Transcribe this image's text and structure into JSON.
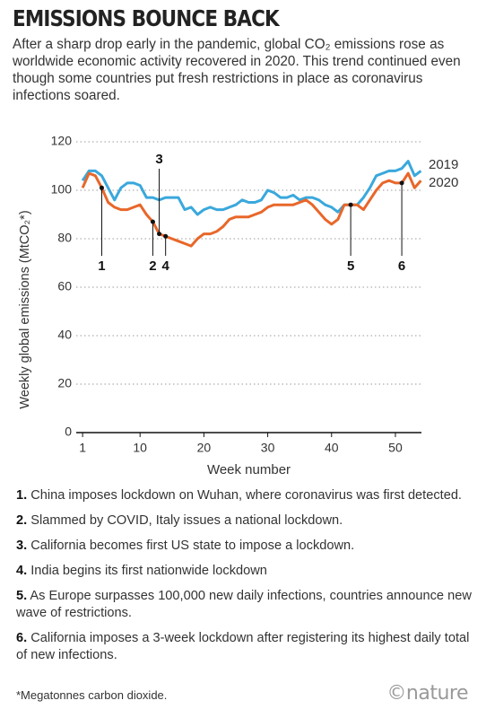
{
  "chart_data": {
    "type": "line",
    "title": "EMISSIONS BOUNCE BACK",
    "subtitle": "After a sharp drop early in the pandemic, global CO₂ emissions rose as worldwide economic activity recovered in 2020. This trend continued even though some countries put fresh restrictions in place as coronavirus infections soared.",
    "x_label": "Week number",
    "y_label": "Weekly global emissions (MtCO₂*)",
    "x": [
      1,
      2,
      3,
      4,
      5,
      6,
      7,
      8,
      9,
      10,
      11,
      12,
      13,
      14,
      15,
      16,
      17,
      18,
      19,
      20,
      21,
      22,
      23,
      24,
      25,
      26,
      27,
      28,
      29,
      30,
      31,
      32,
      33,
      34,
      35,
      36,
      37,
      38,
      39,
      40,
      41,
      42,
      43,
      44,
      45,
      46,
      47,
      48,
      49,
      50,
      51,
      52,
      53,
      54
    ],
    "series": [
      {
        "name": "2019",
        "color": "#3aa8dc",
        "values": [
          104,
          108,
          108,
          106,
          101,
          96,
          101,
          103,
          103,
          102,
          97,
          97,
          96,
          97,
          97,
          97,
          92,
          93,
          90,
          92,
          93,
          92,
          92,
          93,
          94,
          96,
          95,
          95,
          96,
          100,
          99,
          97,
          97,
          98,
          96,
          97,
          97,
          96,
          94,
          93,
          91,
          94,
          94,
          94,
          97,
          101,
          106,
          107,
          108,
          108,
          109,
          112,
          106,
          108
        ]
      },
      {
        "name": "2020",
        "color": "#e8672a",
        "values": [
          101,
          107,
          106,
          101,
          95,
          93,
          92,
          92,
          93,
          94,
          90,
          87,
          82,
          81,
          80,
          79,
          78,
          77,
          80,
          82,
          82,
          83,
          85,
          88,
          89,
          89,
          89,
          90,
          91,
          93,
          94,
          94,
          94,
          94,
          95,
          96,
          94,
          91,
          88,
          86,
          88,
          94,
          94,
          94,
          92,
          96,
          100,
          103,
          104,
          103,
          103,
          107,
          101,
          104
        ]
      }
    ],
    "annotations": [
      {
        "label": "1",
        "x": 4,
        "position": "below"
      },
      {
        "label": "2",
        "x": 12,
        "position": "below"
      },
      {
        "label": "3",
        "x": 13,
        "position": "above"
      },
      {
        "label": "4",
        "x": 14,
        "position": "below"
      },
      {
        "label": "5",
        "x": 43,
        "position": "below"
      },
      {
        "label": "6",
        "x": 51,
        "position": "below"
      }
    ],
    "xlim": [
      0,
      54.5
    ],
    "xticks": [
      1,
      10,
      20,
      30,
      40,
      50
    ],
    "ylim": [
      0,
      120
    ],
    "yticks": [
      0,
      20,
      40,
      60,
      80,
      100,
      120
    ],
    "grid": true,
    "notes": [
      {
        "number": "1.",
        "text": "China imposes lockdown on Wuhan, where coronavirus was first detected."
      },
      {
        "number": "2.",
        "text": "Slammed by COVID, Italy issues a national lockdown."
      },
      {
        "number": "3.",
        "text": "California becomes first US state to impose a lockdown."
      },
      {
        "number": "4.",
        "text": "India begins its first nationwide lockdown"
      },
      {
        "number": "5.",
        "text": "As Europe surpasses 100,000 new daily infections, countries announce new wave of restrictions."
      },
      {
        "number": "6.",
        "text": "California imposes a 3-week lockdown after registering its highest daily total of new infections."
      }
    ],
    "footnote": "*Megatonnes carbon dioxide.",
    "source": "©nature"
  }
}
